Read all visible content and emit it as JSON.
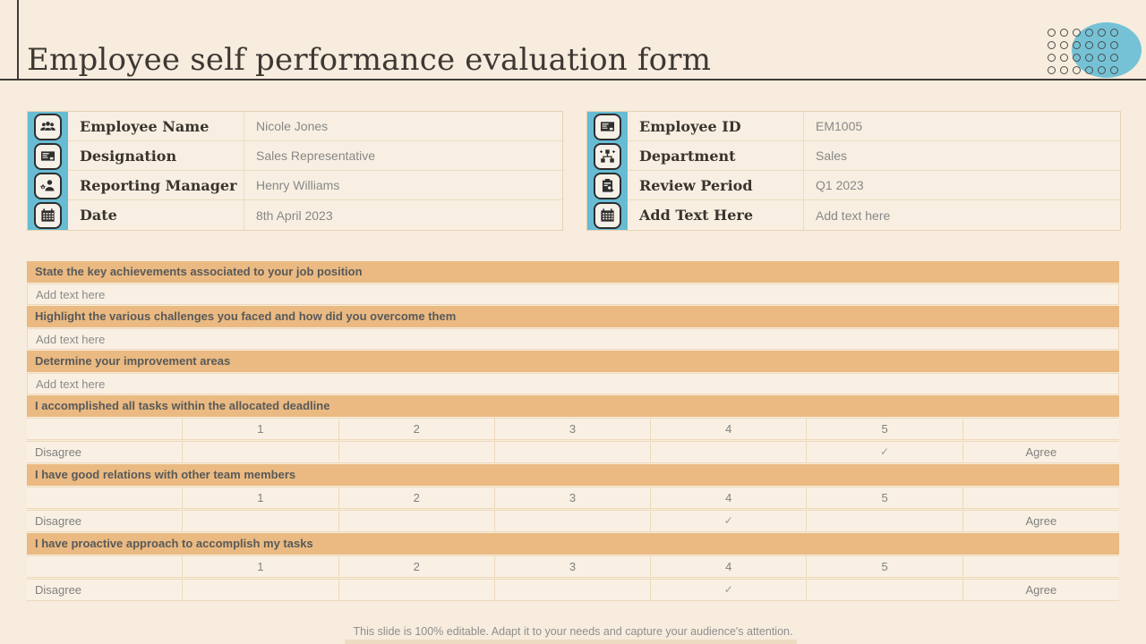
{
  "slide": {
    "title": "Employee self performance evaluation form",
    "footer": "This slide is 100% editable. Adapt it to your needs and capture your audience's attention.",
    "colors": {
      "background": "#f7ecdd",
      "accent_teal": "#67bcd4",
      "accent_orange": "#eaba82",
      "header_line": "#3f3b37"
    }
  },
  "info_left": {
    "rows": [
      {
        "icon": "people-group-icon",
        "label": "Employee Name",
        "value": "Nicole Jones"
      },
      {
        "icon": "id-card-icon",
        "label": "Designation",
        "value": "Sales Representative"
      },
      {
        "icon": "manager-gear-icon",
        "label": "Reporting Manager",
        "value": "Henry Williams"
      },
      {
        "icon": "calendar-icon",
        "label": "Date",
        "value": "8th April 2023"
      }
    ]
  },
  "info_right": {
    "rows": [
      {
        "icon": "id-card-icon",
        "label": "Employee ID",
        "value": "EM1005"
      },
      {
        "icon": "org-chart-icon",
        "label": "Department",
        "value": "Sales"
      },
      {
        "icon": "clipboard-search-icon",
        "label": "Review Period",
        "value": "Q1 2023"
      },
      {
        "icon": "calendar-icon",
        "label": "Add Text Here",
        "value": "Add text here"
      }
    ]
  },
  "form": {
    "check_glyph": "✓",
    "sections": [
      {
        "type": "text",
        "header": "State the key achievements associated to your job position",
        "value": "Add text here"
      },
      {
        "type": "text",
        "header": "Highlight the various challenges you faced and how did you overcome them",
        "value": "Add text here"
      },
      {
        "type": "text",
        "header": "Determine your improvement areas",
        "value": "Add text here"
      },
      {
        "type": "rating",
        "header": "I accomplished all tasks within the allocated deadline",
        "scale": [
          "1",
          "2",
          "3",
          "4",
          "5"
        ],
        "min_label": "Disagree",
        "max_label": "Agree",
        "checked": 5
      },
      {
        "type": "rating",
        "header": "I have good relations with other team members",
        "scale": [
          "1",
          "2",
          "3",
          "4",
          "5"
        ],
        "min_label": "Disagree",
        "max_label": "Agree",
        "checked": 4
      },
      {
        "type": "rating",
        "header": "I have proactive approach to accomplish my tasks",
        "scale": [
          "1",
          "2",
          "3",
          "4",
          "5"
        ],
        "min_label": "Disagree",
        "max_label": "Agree",
        "checked": 4
      }
    ]
  }
}
